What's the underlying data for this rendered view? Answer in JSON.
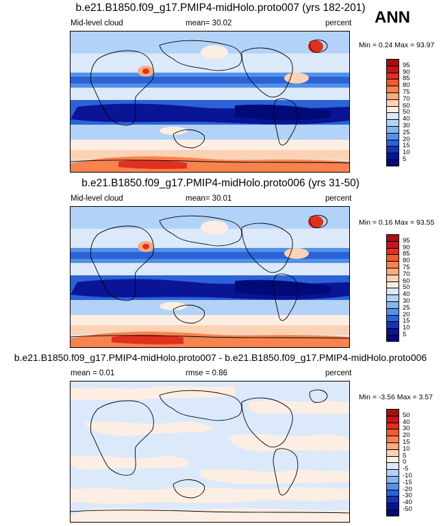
{
  "season": "ANN",
  "panels": [
    {
      "title": "b.e21.B1850.f09_g17.PMIP4-midHolo.proto007 (yrs 182-201)",
      "left_label": "Mid-level cloud",
      "center_label": "mean=  30.02",
      "units": "percent",
      "stats": "Min =   0.24 Max =  93.97",
      "legend_key": "abs"
    },
    {
      "title": "b.e21.B1850.f09_g17.PMIP4-midHolo.proto006 (yrs 31-50)",
      "left_label": "Mid-level cloud",
      "center_label": "mean=  30.01",
      "units": "percent",
      "stats": "Min =   0.16 Max =  93.55",
      "legend_key": "abs"
    },
    {
      "title": "b.e21.B1850.f09_g17.PMIP4-midHolo.proto007 - b.e21.B1850.f09_g17.PMIP4-midHolo.proto006",
      "left_label": "mean =   0.01",
      "center_label": "rmse =   0.86",
      "units": "percent",
      "stats": "Min =  -3.56 Max =   3.57",
      "legend_key": "diff"
    }
  ],
  "legends": {
    "abs": {
      "labels": [
        "95",
        "90",
        "85",
        "80",
        "75",
        "70",
        "60",
        "50",
        "40",
        "30",
        "25",
        "20",
        "15",
        "10",
        "5"
      ],
      "colors": [
        "#a50f15",
        "#c8141c",
        "#e0301e",
        "#ef5a32",
        "#f7834f",
        "#fbab7f",
        "#fcd2b5",
        "#fdeee3",
        "#dbe9fb",
        "#b3d2f7",
        "#86b6f0",
        "#5391e7",
        "#2b63d6",
        "#1534b4",
        "#0a1496",
        "#020a78"
      ]
    },
    "diff": {
      "labels": [
        "50",
        "40",
        "30",
        "20",
        "15",
        "10",
        "5",
        "0",
        "-5",
        "-10",
        "-15",
        "-20",
        "-30",
        "-40",
        "-50"
      ],
      "colors": [
        "#a50f15",
        "#c8141c",
        "#e0301e",
        "#ef5a32",
        "#f7834f",
        "#fbab7f",
        "#fcd2b5",
        "#fdeee3",
        "#dbe9fb",
        "#b3d2f7",
        "#86b6f0",
        "#5391e7",
        "#2b63d6",
        "#1534b4",
        "#0a1496",
        "#020a78"
      ]
    }
  }
}
